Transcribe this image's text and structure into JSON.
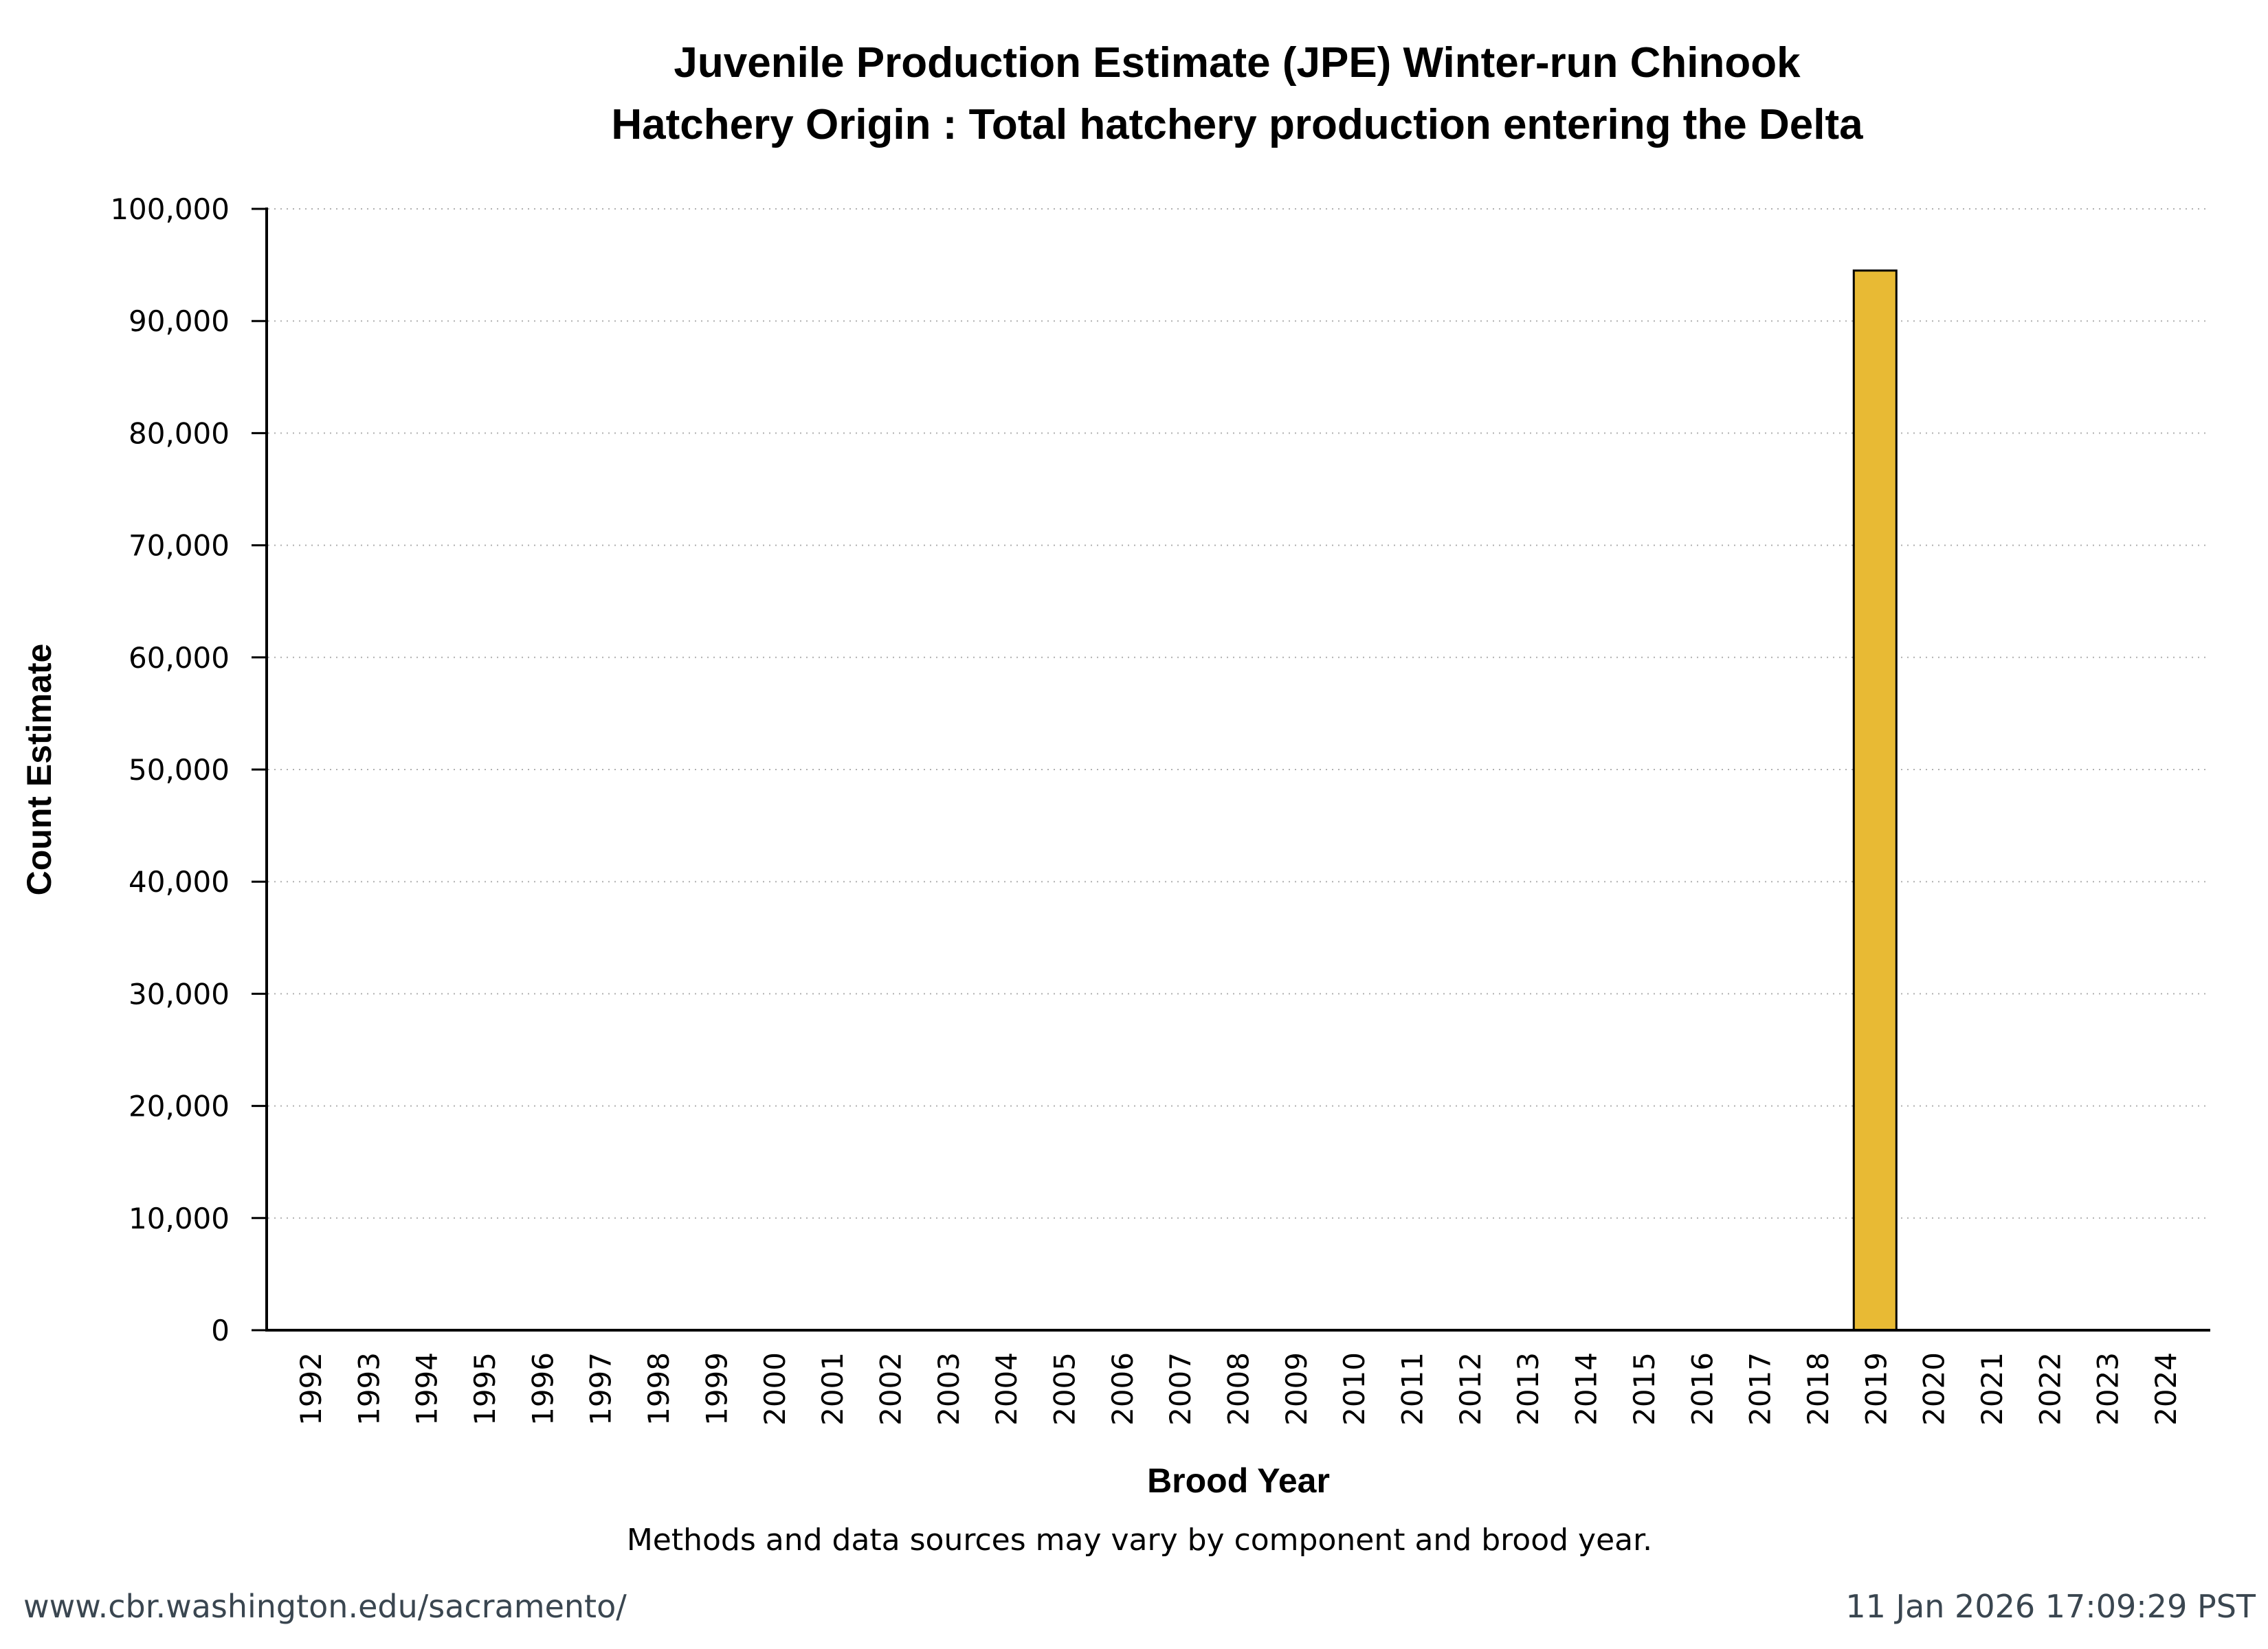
{
  "chart_data": {
    "type": "bar",
    "title": "Juvenile Production Estimate (JPE) Winter-run Chinook",
    "subtitle": "Hatchery Origin : Total hatchery production entering the Delta",
    "xlabel": "Brood Year",
    "ylabel": "Count Estimate",
    "categories": [
      "1992",
      "1993",
      "1994",
      "1995",
      "1996",
      "1997",
      "1998",
      "1999",
      "2000",
      "2001",
      "2002",
      "2003",
      "2004",
      "2005",
      "2006",
      "2007",
      "2008",
      "2009",
      "2010",
      "2011",
      "2012",
      "2013",
      "2014",
      "2015",
      "2016",
      "2017",
      "2018",
      "2019",
      "2020",
      "2021",
      "2022",
      "2023",
      "2024"
    ],
    "values": [
      0,
      0,
      0,
      0,
      0,
      0,
      0,
      0,
      0,
      0,
      0,
      0,
      0,
      0,
      0,
      0,
      0,
      0,
      0,
      0,
      0,
      0,
      0,
      0,
      0,
      0,
      0,
      94500,
      0,
      0,
      0,
      0,
      0
    ],
    "ylim": [
      0,
      100000
    ],
    "yticks": [
      0,
      10000,
      20000,
      30000,
      40000,
      50000,
      60000,
      70000,
      80000,
      90000,
      100000
    ],
    "ytick_labels": [
      "0",
      "10,000",
      "20,000",
      "30,000",
      "40,000",
      "50,000",
      "60,000",
      "70,000",
      "80,000",
      "90,000",
      "100,000"
    ],
    "grid": true,
    "bar_color": "#E8BA34",
    "note": "Methods and data sources may vary by component and brood year."
  },
  "footer": {
    "source": "www.cbr.washington.edu/sacramento/",
    "timestamp": "11 Jan 2026 17:09:29 PST"
  }
}
